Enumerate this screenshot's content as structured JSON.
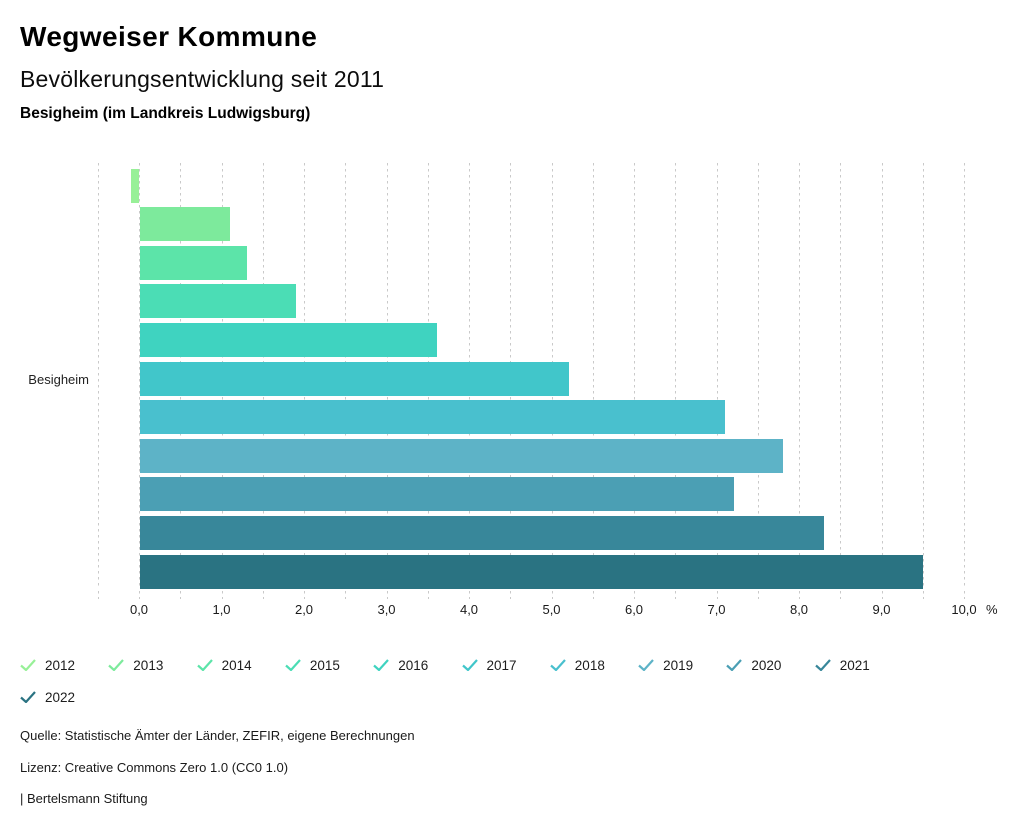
{
  "header": {
    "title": "Wegweiser Kommune",
    "subtitle": "Bevölkerungsentwicklung seit 2011",
    "region": "Besigheim (im Landkreis Ludwigsburg)"
  },
  "chart_data": {
    "type": "bar",
    "orientation": "horizontal",
    "title": "Bevölkerungsentwicklung seit 2011",
    "category_label": "Besigheim",
    "unit": "%",
    "series": [
      {
        "name": "2012",
        "value": -0.1,
        "color": "#98f098"
      },
      {
        "name": "2013",
        "value": 1.1,
        "color": "#7dea9c"
      },
      {
        "name": "2014",
        "value": 1.3,
        "color": "#5ce4a9"
      },
      {
        "name": "2015",
        "value": 1.9,
        "color": "#4bddb5"
      },
      {
        "name": "2016",
        "value": 3.6,
        "color": "#3fd3c0"
      },
      {
        "name": "2017",
        "value": 5.2,
        "color": "#41c6ca"
      },
      {
        "name": "2018",
        "value": 7.1,
        "color": "#49c0ce"
      },
      {
        "name": "2019",
        "value": 7.8,
        "color": "#5db3c7"
      },
      {
        "name": "2020",
        "value": 7.2,
        "color": "#4b9fb4"
      },
      {
        "name": "2021",
        "value": 8.3,
        "color": "#38879a"
      },
      {
        "name": "2022",
        "value": 9.5,
        "color": "#2a7382"
      }
    ],
    "xlim": [
      -0.5,
      10.0
    ],
    "gridline_step": 0.5,
    "x_tick_values": [
      0,
      1,
      2,
      3,
      4,
      5,
      6,
      7,
      8,
      9,
      10
    ],
    "x_tick_labels": [
      "0,0",
      "1,0",
      "2,0",
      "3,0",
      "4,0",
      "5,0",
      "6,0",
      "7,0",
      "8,0",
      "9,0",
      "10,0"
    ],
    "grid": true,
    "legend_position": "bottom"
  },
  "footer": {
    "source": "Quelle: Statistische Ämter der Länder, ZEFIR, eigene Berechnungen",
    "license": "Lizenz: Creative Commons Zero 1.0 (CC0 1.0)",
    "attribution": "| Bertelsmann Stiftung"
  }
}
